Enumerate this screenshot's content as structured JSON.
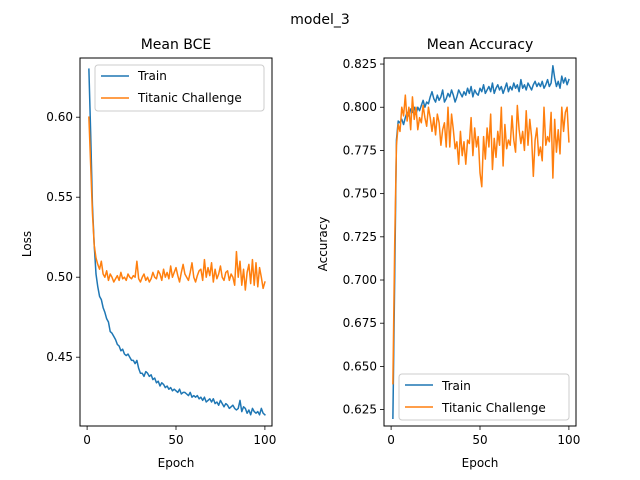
{
  "figure": {
    "suptitle": "model_3"
  },
  "colors": {
    "train": "#1f77b4",
    "test": "#ff7f0e"
  },
  "chart_data": [
    {
      "type": "line",
      "title": "Mean BCE",
      "xlabel": "Epoch",
      "ylabel": "Loss",
      "xlim": [
        -4,
        104
      ],
      "ylim": [
        0.407,
        0.637
      ],
      "xticks": [
        0,
        50,
        100
      ],
      "yticks": [
        0.45,
        0.5,
        0.55,
        0.6
      ],
      "legend": "upper right",
      "series": [
        {
          "name": "Train",
          "x": [
            1,
            2,
            3,
            4,
            5,
            6,
            7,
            8,
            9,
            10,
            11,
            12,
            13,
            14,
            15,
            16,
            17,
            18,
            19,
            20,
            21,
            22,
            23,
            24,
            25,
            26,
            27,
            28,
            29,
            30,
            31,
            32,
            33,
            34,
            35,
            36,
            37,
            38,
            39,
            40,
            41,
            42,
            43,
            44,
            45,
            46,
            47,
            48,
            49,
            50,
            51,
            52,
            53,
            54,
            55,
            56,
            57,
            58,
            59,
            60,
            61,
            62,
            63,
            64,
            65,
            66,
            67,
            68,
            69,
            70,
            71,
            72,
            73,
            74,
            75,
            76,
            77,
            78,
            79,
            80,
            81,
            82,
            83,
            84,
            85,
            86,
            87,
            88,
            89,
            90,
            91,
            92,
            93,
            94,
            95,
            96,
            97,
            98,
            99,
            100
          ],
          "values": [
            0.63,
            0.59,
            0.545,
            0.52,
            0.502,
            0.494,
            0.488,
            0.486,
            0.481,
            0.478,
            0.474,
            0.472,
            0.466,
            0.465,
            0.463,
            0.461,
            0.458,
            0.457,
            0.454,
            0.455,
            0.452,
            0.451,
            0.452,
            0.45,
            0.448,
            0.448,
            0.446,
            0.448,
            0.443,
            0.44,
            0.44,
            0.438,
            0.441,
            0.44,
            0.438,
            0.439,
            0.436,
            0.437,
            0.434,
            0.435,
            0.432,
            0.434,
            0.433,
            0.431,
            0.432,
            0.43,
            0.431,
            0.429,
            0.43,
            0.429,
            0.428,
            0.43,
            0.427,
            0.428,
            0.428,
            0.427,
            0.426,
            0.428,
            0.425,
            0.426,
            0.425,
            0.426,
            0.424,
            0.425,
            0.423,
            0.425,
            0.422,
            0.423,
            0.424,
            0.422,
            0.424,
            0.421,
            0.422,
            0.42,
            0.423,
            0.421,
            0.419,
            0.421,
            0.42,
            0.418,
            0.419,
            0.42,
            0.418,
            0.417,
            0.418,
            0.423,
            0.416,
            0.419,
            0.418,
            0.415,
            0.417,
            0.414,
            0.418,
            0.416,
            0.415,
            0.416,
            0.414,
            0.418,
            0.415,
            0.414
          ]
        },
        {
          "name": "Titanic Challenge",
          "x": [
            1,
            2,
            3,
            4,
            5,
            6,
            7,
            8,
            9,
            10,
            11,
            12,
            13,
            14,
            15,
            16,
            17,
            18,
            19,
            20,
            21,
            22,
            23,
            24,
            25,
            26,
            27,
            28,
            29,
            30,
            31,
            32,
            33,
            34,
            35,
            36,
            37,
            38,
            39,
            40,
            41,
            42,
            43,
            44,
            45,
            46,
            47,
            48,
            49,
            50,
            51,
            52,
            53,
            54,
            55,
            56,
            57,
            58,
            59,
            60,
            61,
            62,
            63,
            64,
            65,
            66,
            67,
            68,
            69,
            70,
            71,
            72,
            73,
            74,
            75,
            76,
            77,
            78,
            79,
            80,
            81,
            82,
            83,
            84,
            85,
            86,
            87,
            88,
            89,
            90,
            91,
            92,
            93,
            94,
            95,
            96,
            97,
            98,
            99,
            100
          ],
          "values": [
            0.6,
            0.57,
            0.54,
            0.52,
            0.512,
            0.508,
            0.505,
            0.51,
            0.502,
            0.5,
            0.504,
            0.498,
            0.502,
            0.5,
            0.497,
            0.499,
            0.501,
            0.498,
            0.503,
            0.499,
            0.5,
            0.498,
            0.502,
            0.5,
            0.499,
            0.501,
            0.5,
            0.51,
            0.499,
            0.497,
            0.5,
            0.502,
            0.498,
            0.5,
            0.497,
            0.499,
            0.503,
            0.5,
            0.499,
            0.504,
            0.502,
            0.498,
            0.505,
            0.5,
            0.503,
            0.499,
            0.507,
            0.5,
            0.503,
            0.506,
            0.501,
            0.497,
            0.503,
            0.508,
            0.502,
            0.5,
            0.498,
            0.503,
            0.509,
            0.5,
            0.497,
            0.501,
            0.504,
            0.505,
            0.498,
            0.511,
            0.5,
            0.506,
            0.501,
            0.509,
            0.497,
            0.505,
            0.499,
            0.502,
            0.507,
            0.5,
            0.498,
            0.503,
            0.504,
            0.498,
            0.502,
            0.5,
            0.495,
            0.516,
            0.5,
            0.51,
            0.495,
            0.505,
            0.492,
            0.503,
            0.508,
            0.496,
            0.511,
            0.495,
            0.509,
            0.494,
            0.506,
            0.5,
            0.493,
            0.497
          ]
        }
      ]
    },
    {
      "type": "line",
      "title": "Mean Accuracy",
      "xlabel": "Epoch",
      "ylabel": "Accuracy",
      "xlim": [
        -4,
        104
      ],
      "ylim": [
        0.6155,
        0.8285
      ],
      "xticks": [
        0,
        50,
        100
      ],
      "yticks": [
        0.625,
        0.65,
        0.675,
        0.7,
        0.725,
        0.75,
        0.775,
        0.8,
        0.825
      ],
      "legend": "lower right",
      "series": [
        {
          "name": "Train",
          "x": [
            1,
            2,
            3,
            4,
            5,
            6,
            7,
            8,
            9,
            10,
            11,
            12,
            13,
            14,
            15,
            16,
            17,
            18,
            19,
            20,
            21,
            22,
            23,
            24,
            25,
            26,
            27,
            28,
            29,
            30,
            31,
            32,
            33,
            34,
            35,
            36,
            37,
            38,
            39,
            40,
            41,
            42,
            43,
            44,
            45,
            46,
            47,
            48,
            49,
            50,
            51,
            52,
            53,
            54,
            55,
            56,
            57,
            58,
            59,
            60,
            61,
            62,
            63,
            64,
            65,
            66,
            67,
            68,
            69,
            70,
            71,
            72,
            73,
            74,
            75,
            76,
            77,
            78,
            79,
            80,
            81,
            82,
            83,
            84,
            85,
            86,
            87,
            88,
            89,
            90,
            91,
            92,
            93,
            94,
            95,
            96,
            97,
            98,
            99,
            100
          ],
          "values": [
            0.62,
            0.7,
            0.781,
            0.792,
            0.791,
            0.793,
            0.79,
            0.794,
            0.797,
            0.795,
            0.799,
            0.797,
            0.8,
            0.796,
            0.8,
            0.798,
            0.801,
            0.804,
            0.8,
            0.803,
            0.802,
            0.806,
            0.809,
            0.805,
            0.803,
            0.807,
            0.804,
            0.806,
            0.81,
            0.803,
            0.805,
            0.808,
            0.806,
            0.81,
            0.807,
            0.803,
            0.806,
            0.81,
            0.808,
            0.806,
            0.809,
            0.807,
            0.811,
            0.808,
            0.812,
            0.806,
            0.81,
            0.808,
            0.807,
            0.811,
            0.809,
            0.813,
            0.808,
            0.81,
            0.812,
            0.809,
            0.814,
            0.808,
            0.811,
            0.813,
            0.81,
            0.812,
            0.808,
            0.811,
            0.814,
            0.809,
            0.812,
            0.81,
            0.814,
            0.811,
            0.813,
            0.809,
            0.816,
            0.811,
            0.813,
            0.81,
            0.814,
            0.812,
            0.81,
            0.813,
            0.815,
            0.812,
            0.814,
            0.812,
            0.815,
            0.811,
            0.813,
            0.816,
            0.812,
            0.814,
            0.824,
            0.817,
            0.812,
            0.815,
            0.811,
            0.818,
            0.814,
            0.817,
            0.813,
            0.816
          ]
        },
        {
          "name": "Titanic Challenge",
          "x": [
            1,
            2,
            3,
            4,
            5,
            6,
            7,
            8,
            9,
            10,
            11,
            12,
            13,
            14,
            15,
            16,
            17,
            18,
            19,
            20,
            21,
            22,
            23,
            24,
            25,
            26,
            27,
            28,
            29,
            30,
            31,
            32,
            33,
            34,
            35,
            36,
            37,
            38,
            39,
            40,
            41,
            42,
            43,
            44,
            45,
            46,
            47,
            48,
            49,
            50,
            51,
            52,
            53,
            54,
            55,
            56,
            57,
            58,
            59,
            60,
            61,
            62,
            63,
            64,
            65,
            66,
            67,
            68,
            69,
            70,
            71,
            72,
            73,
            74,
            75,
            76,
            77,
            78,
            79,
            80,
            81,
            82,
            83,
            84,
            85,
            86,
            87,
            88,
            89,
            90,
            91,
            92,
            93,
            94,
            95,
            96,
            97,
            98,
            99,
            100
          ],
          "values": [
            0.64,
            0.72,
            0.778,
            0.79,
            0.786,
            0.8,
            0.795,
            0.807,
            0.792,
            0.8,
            0.787,
            0.806,
            0.793,
            0.8,
            0.787,
            0.794,
            0.791,
            0.801,
            0.794,
            0.789,
            0.8,
            0.794,
            0.786,
            0.794,
            0.784,
            0.796,
            0.791,
            0.778,
            0.787,
            0.791,
            0.777,
            0.8,
            0.777,
            0.796,
            0.787,
            0.776,
            0.78,
            0.767,
            0.786,
            0.772,
            0.78,
            0.767,
            0.781,
            0.779,
            0.794,
            0.772,
            0.788,
            0.777,
            0.783,
            0.762,
            0.754,
            0.783,
            0.77,
            0.788,
            0.777,
            0.796,
            0.764,
            0.782,
            0.771,
            0.786,
            0.778,
            0.8,
            0.766,
            0.79,
            0.776,
            0.781,
            0.778,
            0.795,
            0.781,
            0.774,
            0.801,
            0.787,
            0.779,
            0.786,
            0.775,
            0.798,
            0.778,
            0.793,
            0.783,
            0.76,
            0.781,
            0.788,
            0.772,
            0.777,
            0.769,
            0.8,
            0.778,
            0.783,
            0.78,
            0.797,
            0.759,
            0.793,
            0.774,
            0.787,
            0.773,
            0.8,
            0.786,
            0.797,
            0.8,
            0.78
          ]
        }
      ]
    }
  ]
}
